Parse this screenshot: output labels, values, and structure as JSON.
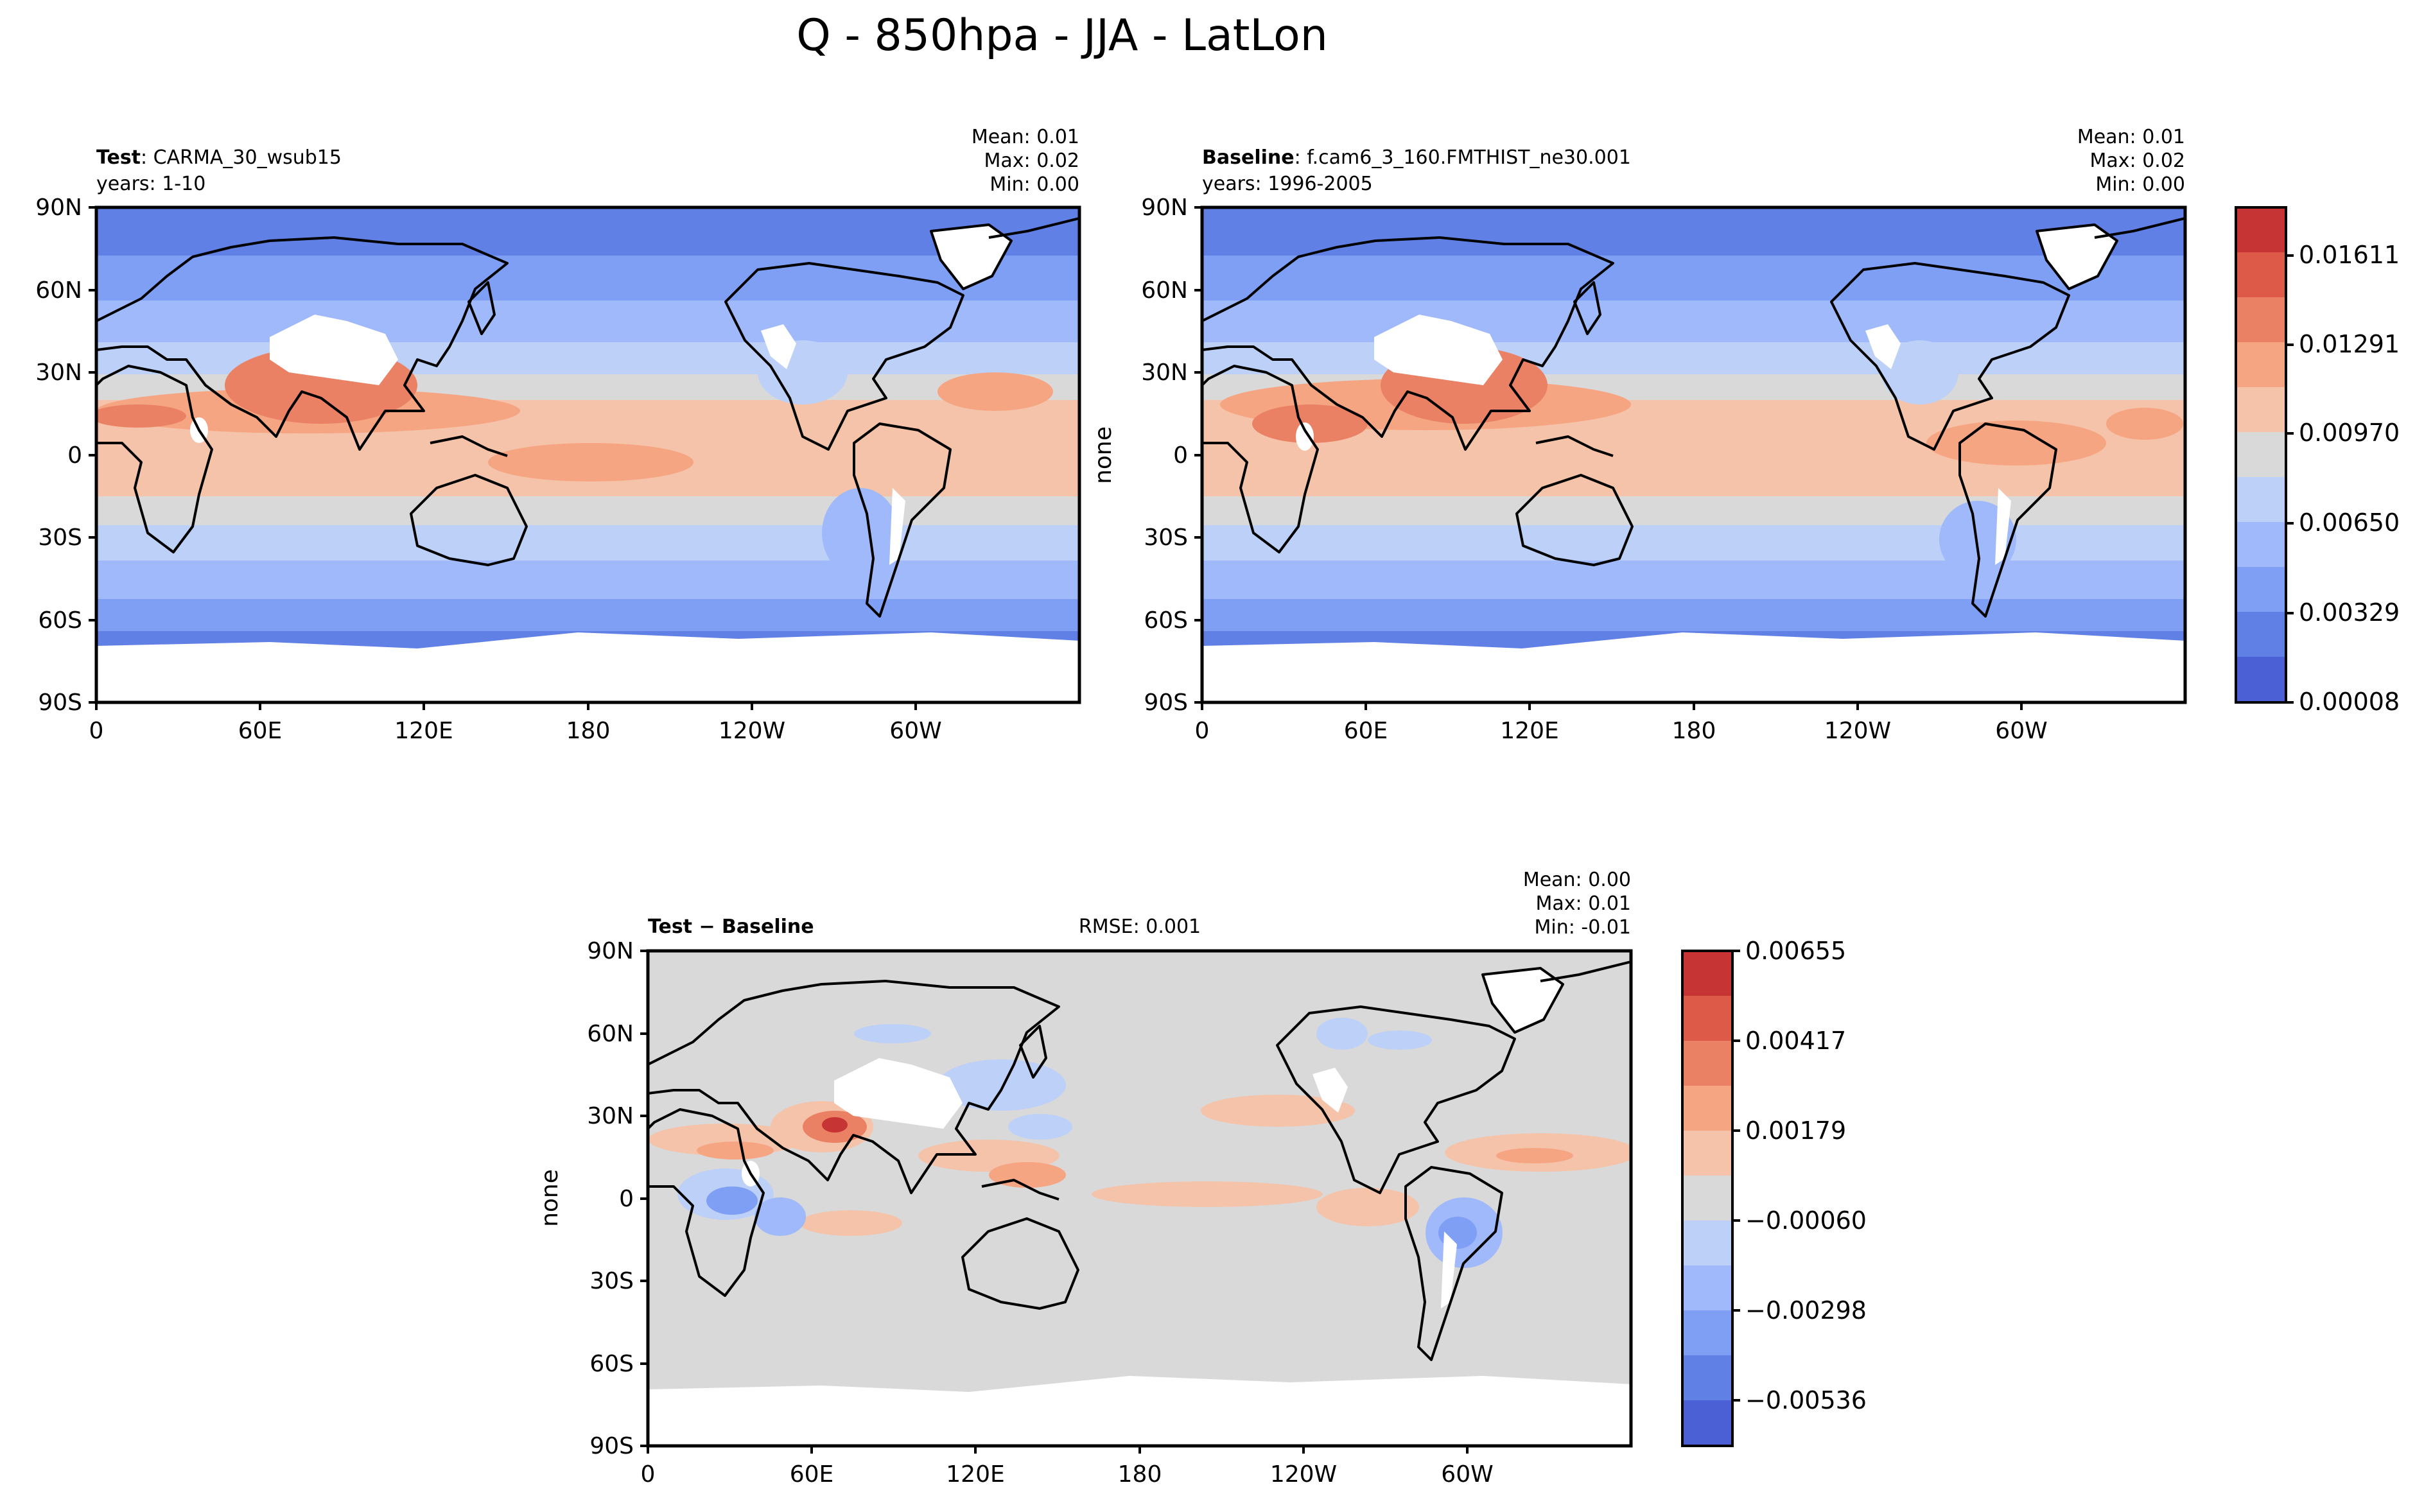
{
  "figure": {
    "title": "Q - 850hpa - JJA - LatLon"
  },
  "colors": {
    "levels": [
      "#4a60d4",
      "#6180e6",
      "#7f9ff5",
      "#9fb9fa",
      "#bdd0f7",
      "#d9d9d9",
      "#f5c3a9",
      "#f6a583",
      "#ea8064",
      "#de5a48",
      "#c63434"
    ],
    "land_white": "#ffffff",
    "coast": "#000000",
    "background_frame": "#000000"
  },
  "chart_data": [
    {
      "type": "heatmap",
      "title_bold": "Test",
      "title_rest": ": CARMA_30_wsub15",
      "subtitle": "years: 1-10",
      "stats": {
        "mean": "Mean:  0.01",
        "max": "Max:  0.02",
        "min": "Min:  0.00"
      },
      "ylabel": "",
      "x_ticks": [
        "0",
        "60E",
        "120E",
        "180",
        "120W",
        "60W"
      ],
      "y_ticks": [
        "90N",
        "60N",
        "30N",
        "0",
        "30S",
        "60S",
        "90S"
      ],
      "xlim": [
        0,
        360
      ],
      "ylim": [
        -90,
        90
      ]
    },
    {
      "type": "heatmap",
      "title_bold": "Baseline",
      "title_rest": ": f.cam6_3_160.FMTHIST_ne30.001",
      "subtitle": "years: 1996-2005",
      "stats": {
        "mean": "Mean:  0.01",
        "max": "Max:  0.02",
        "min": "Min:  0.00"
      },
      "ylabel": "none",
      "x_ticks": [
        "0",
        "60E",
        "120E",
        "180",
        "120W",
        "60W"
      ],
      "y_ticks": [
        "90N",
        "60N",
        "30N",
        "0",
        "30S",
        "60S",
        "90S"
      ],
      "xlim": [
        0,
        360
      ],
      "ylim": [
        -90,
        90
      ],
      "colorbar_ticks": [
        "0.01611",
        "0.01291",
        "0.00970",
        "0.00650",
        "0.00329",
        "0.00008"
      ]
    },
    {
      "type": "heatmap",
      "title_bold": "Test",
      "title_rest": " − Baseline",
      "rmse": "RMSE: 0.001",
      "stats": {
        "mean": "Mean:  0.00",
        "max": "Max:  0.01",
        "min": "Min: -0.01"
      },
      "ylabel": "none",
      "x_ticks": [
        "0",
        "60E",
        "120E",
        "180",
        "120W",
        "60W"
      ],
      "y_ticks": [
        "90N",
        "60N",
        "30N",
        "0",
        "30S",
        "60S",
        "90S"
      ],
      "xlim": [
        0,
        360
      ],
      "ylim": [
        -90,
        90
      ],
      "colorbar_ticks": [
        "0.00655",
        "0.00417",
        "0.00179",
        "−0.00060",
        "−0.00298",
        "−0.00536"
      ]
    }
  ]
}
